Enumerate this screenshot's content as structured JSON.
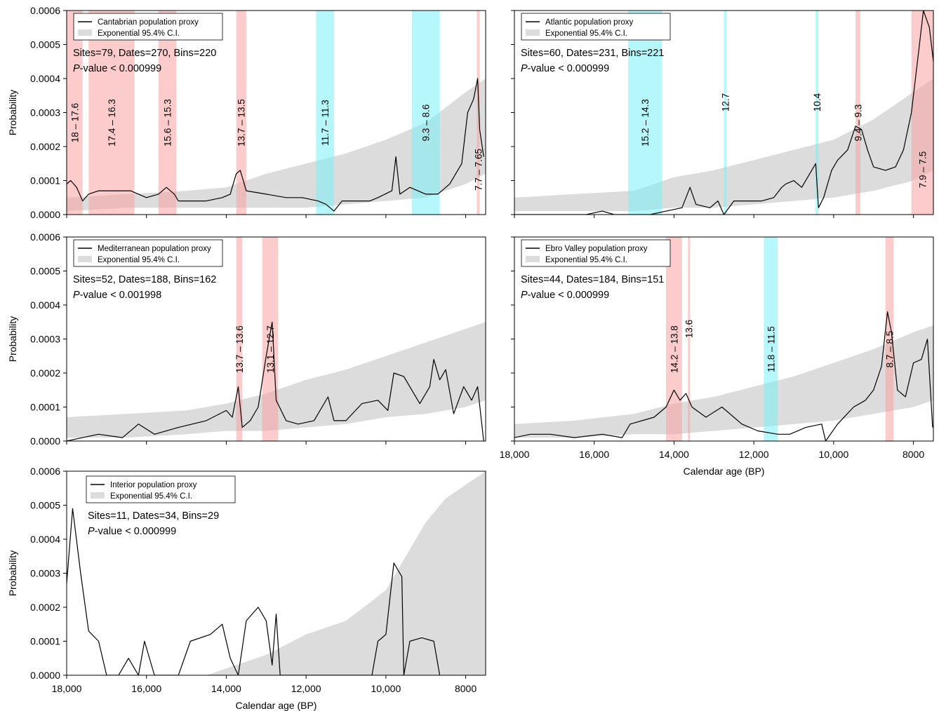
{
  "figure": {
    "ylabel": "Probability",
    "xlabel": "Calendar age (BP)",
    "ci_label": "Exponential 95.4% C.I."
  },
  "chart_data": [
    {
      "type": "line",
      "legend": "Cantabrian population proxy",
      "stats": "Sites=79, Dates=270, Bins=220",
      "pvalue": "< 0.000999",
      "xlim": [
        18000,
        7500
      ],
      "ylim": [
        0,
        0.0006
      ],
      "yticks": [
        "0.0000",
        "0.0001",
        "0.0002",
        "0.0003",
        "0.0004",
        "0.0005",
        "0.0006"
      ],
      "xticks": [],
      "bands": [
        {
          "from": 18000,
          "to": 17600,
          "label": "18 – 17.6",
          "color": "red"
        },
        {
          "from": 17450,
          "to": 16300,
          "label": "17.4 – 16.3",
          "color": "red"
        },
        {
          "from": 15700,
          "to": 15250,
          "label": "15.6 – 15.3",
          "color": "red"
        },
        {
          "from": 13750,
          "to": 13500,
          "label": "13.7 – 13.5",
          "color": "red"
        },
        {
          "from": 11750,
          "to": 11300,
          "label": "11.7 – 11.3",
          "color": "cyan"
        },
        {
          "from": 9350,
          "to": 8650,
          "label": "9.3 – 8.6",
          "color": "cyan"
        },
        {
          "from": 7720,
          "to": 7650,
          "label": "7.7 – 7.65",
          "color": "red"
        }
      ],
      "ci": [
        [
          18000,
          1e-05,
          5e-05
        ],
        [
          16500,
          2e-05,
          6e-05
        ],
        [
          15000,
          2e-05,
          7e-05
        ],
        [
          14000,
          2e-05,
          8e-05
        ],
        [
          13000,
          2e-05,
          0.00012
        ],
        [
          12000,
          2e-05,
          0.00015
        ],
        [
          11000,
          3e-05,
          0.00018
        ],
        [
          10000,
          4e-05,
          0.00022
        ],
        [
          9000,
          5e-05,
          0.00027
        ],
        [
          8000,
          9e-05,
          0.00036
        ],
        [
          7500,
          0.00012,
          0.0004
        ]
      ],
      "line": [
        [
          18000,
          9e-05
        ],
        [
          17900,
          0.0001
        ],
        [
          17750,
          8e-05
        ],
        [
          17600,
          4e-05
        ],
        [
          17450,
          6e-05
        ],
        [
          17200,
          7e-05
        ],
        [
          16800,
          7e-05
        ],
        [
          16400,
          7e-05
        ],
        [
          16000,
          5e-05
        ],
        [
          15700,
          6e-05
        ],
        [
          15500,
          8e-05
        ],
        [
          15300,
          6e-05
        ],
        [
          15200,
          4e-05
        ],
        [
          14500,
          4e-05
        ],
        [
          14100,
          5e-05
        ],
        [
          13900,
          6e-05
        ],
        [
          13750,
          0.00012
        ],
        [
          13650,
          0.00013
        ],
        [
          13500,
          7e-05
        ],
        [
          13000,
          6e-05
        ],
        [
          12500,
          5e-05
        ],
        [
          12100,
          5e-05
        ],
        [
          11700,
          4e-05
        ],
        [
          11500,
          3e-05
        ],
        [
          11300,
          1e-05
        ],
        [
          11100,
          4e-05
        ],
        [
          10400,
          4e-05
        ],
        [
          10200,
          5e-05
        ],
        [
          9850,
          7e-05
        ],
        [
          9750,
          0.00017
        ],
        [
          9650,
          6e-05
        ],
        [
          9400,
          8e-05
        ],
        [
          9000,
          6e-05
        ],
        [
          8700,
          6e-05
        ],
        [
          8400,
          9e-05
        ],
        [
          8100,
          0.00015
        ],
        [
          7950,
          0.0003
        ],
        [
          7800,
          0.00034
        ],
        [
          7700,
          0.0004
        ],
        [
          7650,
          0.00025
        ],
        [
          7550,
          0.00017
        ]
      ]
    },
    {
      "type": "line",
      "legend": "Atlantic population proxy",
      "stats": "Sites=60, Dates=231, Bins=221",
      "pvalue": "< 0.000999",
      "xlim": [
        18000,
        7500
      ],
      "ylim": [
        0,
        0.0006
      ],
      "yticks": [],
      "xticks": [],
      "bands": [
        {
          "from": 15150,
          "to": 14300,
          "label": "15.2 – 14.3",
          "color": "cyan"
        },
        {
          "from": 12750,
          "to": 12680,
          "label": "12.7",
          "color": "cyan"
        },
        {
          "from": 10450,
          "to": 10380,
          "label": "10.4",
          "color": "cyan"
        },
        {
          "from": 9450,
          "to": 9330,
          "label": "9.4 – 9.3",
          "color": "red"
        },
        {
          "from": 8050,
          "to": 7500,
          "label": "7.9 – 7.5",
          "color": "red"
        }
      ],
      "ci": [
        [
          18000,
          1e-05,
          5e-05
        ],
        [
          16500,
          1e-05,
          6e-05
        ],
        [
          15000,
          1e-05,
          7e-05
        ],
        [
          14000,
          2e-05,
          0.00011
        ],
        [
          13000,
          2e-05,
          0.00013
        ],
        [
          12000,
          3e-05,
          0.00016
        ],
        [
          11000,
          4e-05,
          0.00019
        ],
        [
          10000,
          5e-05,
          0.00022
        ],
        [
          9000,
          7e-05,
          0.00028
        ],
        [
          8000,
          0.0001,
          0.00036
        ],
        [
          7500,
          0.00013,
          0.0004
        ]
      ],
      "line": [
        [
          18000,
          0.0
        ],
        [
          16200,
          0.0
        ],
        [
          15800,
          1e-05
        ],
        [
          15500,
          0.0
        ],
        [
          14600,
          0.0
        ],
        [
          14200,
          1e-05
        ],
        [
          13800,
          2e-05
        ],
        [
          13600,
          8e-05
        ],
        [
          13450,
          3e-05
        ],
        [
          13100,
          2e-05
        ],
        [
          12900,
          4e-05
        ],
        [
          12750,
          0.0
        ],
        [
          12500,
          4e-05
        ],
        [
          11800,
          4e-05
        ],
        [
          11500,
          5e-05
        ],
        [
          11300,
          8e-05
        ],
        [
          11200,
          9e-05
        ],
        [
          11000,
          0.0001
        ],
        [
          10800,
          8e-05
        ],
        [
          10650,
          0.00011
        ],
        [
          10450,
          0.00015
        ],
        [
          10380,
          2e-05
        ],
        [
          10250,
          5e-05
        ],
        [
          10050,
          0.00013
        ],
        [
          9900,
          0.00016
        ],
        [
          9650,
          0.00019
        ],
        [
          9450,
          0.00026
        ],
        [
          9300,
          0.00025
        ],
        [
          9150,
          0.00019
        ],
        [
          9000,
          0.00014
        ],
        [
          8700,
          0.00013
        ],
        [
          8450,
          0.00014
        ],
        [
          8250,
          0.00019
        ],
        [
          8050,
          0.0003
        ],
        [
          7900,
          0.00045
        ],
        [
          7750,
          0.0006
        ],
        [
          7600,
          0.00055
        ],
        [
          7500,
          0.00045
        ]
      ]
    },
    {
      "type": "line",
      "legend": "Mediterranean population proxy",
      "stats": "Sites=52, Dates=188, Bins=162",
      "pvalue": "< 0.001998",
      "xlim": [
        18000,
        7500
      ],
      "ylim": [
        0,
        0.0006
      ],
      "yticks": [
        "0.0000",
        "0.0001",
        "0.0002",
        "0.0003",
        "0.0004",
        "0.0005",
        "0.0006"
      ],
      "xticks": [],
      "bands": [
        {
          "from": 13750,
          "to": 13600,
          "label": "13.7 – 13.6",
          "color": "red"
        },
        {
          "from": 13100,
          "to": 12700,
          "label": "13.1 – 12.7",
          "color": "red"
        }
      ],
      "ci": [
        [
          18000,
          1e-05,
          7e-05
        ],
        [
          16500,
          1e-05,
          8e-05
        ],
        [
          15000,
          2e-05,
          9e-05
        ],
        [
          14000,
          3e-05,
          0.00011
        ],
        [
          13000,
          3e-05,
          0.00014
        ],
        [
          12000,
          4e-05,
          0.00018
        ],
        [
          11000,
          5e-05,
          0.00021
        ],
        [
          10000,
          7e-05,
          0.00025
        ],
        [
          9000,
          8e-05,
          0.00029
        ],
        [
          8000,
          0.0001,
          0.00033
        ],
        [
          7500,
          0.00012,
          0.00035
        ]
      ],
      "line": [
        [
          18000,
          0.0
        ],
        [
          17600,
          1e-05
        ],
        [
          17200,
          2e-05
        ],
        [
          16600,
          1e-05
        ],
        [
          16200,
          5e-05
        ],
        [
          15800,
          2e-05
        ],
        [
          15200,
          4e-05
        ],
        [
          14500,
          6e-05
        ],
        [
          14000,
          9e-05
        ],
        [
          13850,
          7e-05
        ],
        [
          13700,
          0.00016
        ],
        [
          13600,
          4e-05
        ],
        [
          13400,
          6e-05
        ],
        [
          13200,
          0.0001
        ],
        [
          13000,
          0.00025
        ],
        [
          12850,
          0.00035
        ],
        [
          12750,
          0.00012
        ],
        [
          12500,
          6e-05
        ],
        [
          12200,
          5e-05
        ],
        [
          11800,
          6e-05
        ],
        [
          11450,
          0.00013
        ],
        [
          11300,
          6e-05
        ],
        [
          11000,
          6e-05
        ],
        [
          10600,
          0.00011
        ],
        [
          10200,
          0.00012
        ],
        [
          9950,
          9e-05
        ],
        [
          9800,
          0.0002
        ],
        [
          9550,
          0.00019
        ],
        [
          9350,
          0.00015
        ],
        [
          9150,
          0.00011
        ],
        [
          8900,
          0.00016
        ],
        [
          8800,
          0.00024
        ],
        [
          8650,
          0.00018
        ],
        [
          8500,
          0.00021
        ],
        [
          8300,
          8e-05
        ],
        [
          8050,
          0.00016
        ],
        [
          7850,
          0.00012
        ],
        [
          7700,
          0.00016
        ],
        [
          7550,
          0.0
        ]
      ]
    },
    {
      "type": "line",
      "legend": "Ebro Valley population proxy",
      "stats": "Sites=44, Dates=184, Bins=151",
      "pvalue": "< 0.000999",
      "xlim": [
        18000,
        7500
      ],
      "ylim": [
        0,
        0.0006
      ],
      "yticks": [],
      "xticks": [
        "18,000",
        "16,000",
        "14,000",
        "12,000",
        "10,000",
        "8000"
      ],
      "xtick_values": [
        18000,
        16000,
        14000,
        12000,
        10000,
        8000
      ],
      "bands": [
        {
          "from": 14200,
          "to": 13800,
          "label": "14.2 – 13.8",
          "color": "red"
        },
        {
          "from": 13650,
          "to": 13600,
          "label": "13.6",
          "color": "red"
        },
        {
          "from": 11750,
          "to": 11400,
          "label": "11.8 – 11.5",
          "color": "cyan"
        },
        {
          "from": 8700,
          "to": 8500,
          "label": "8.7 – 8.5",
          "color": "red"
        }
      ],
      "ci": [
        [
          18000,
          1e-05,
          5e-05
        ],
        [
          16500,
          1e-05,
          6e-05
        ],
        [
          15000,
          2e-05,
          8e-05
        ],
        [
          14000,
          2e-05,
          0.00011
        ],
        [
          13000,
          3e-05,
          0.00013
        ],
        [
          12000,
          4e-05,
          0.00016
        ],
        [
          11000,
          5e-05,
          0.00019
        ],
        [
          10000,
          6e-05,
          0.00023
        ],
        [
          9000,
          8e-05,
          0.00027
        ],
        [
          8000,
          0.0001,
          0.00032
        ],
        [
          7500,
          0.00012,
          0.00034
        ]
      ],
      "line": [
        [
          18000,
          1e-05
        ],
        [
          17600,
          2e-05
        ],
        [
          17100,
          2e-05
        ],
        [
          16500,
          1e-05
        ],
        [
          15800,
          2e-05
        ],
        [
          15300,
          1e-05
        ],
        [
          15100,
          5e-05
        ],
        [
          14500,
          7e-05
        ],
        [
          14200,
          0.0001
        ],
        [
          14000,
          0.00015
        ],
        [
          13850,
          0.00012
        ],
        [
          13700,
          0.00014
        ],
        [
          13550,
          0.0001
        ],
        [
          13200,
          7e-05
        ],
        [
          12800,
          0.0001
        ],
        [
          12300,
          5e-05
        ],
        [
          11900,
          3e-05
        ],
        [
          11400,
          2e-05
        ],
        [
          11100,
          2e-05
        ],
        [
          10700,
          4e-05
        ],
        [
          10300,
          5e-05
        ],
        [
          10200,
          0.0
        ],
        [
          9900,
          5e-05
        ],
        [
          9500,
          0.0001
        ],
        [
          9200,
          0.00012
        ],
        [
          9000,
          0.00015
        ],
        [
          8800,
          0.00022
        ],
        [
          8650,
          0.00038
        ],
        [
          8550,
          0.00032
        ],
        [
          8400,
          0.00015
        ],
        [
          8200,
          0.00013
        ],
        [
          8000,
          0.00023
        ],
        [
          7800,
          0.00024
        ],
        [
          7650,
          0.0003
        ],
        [
          7520,
          4e-05
        ]
      ]
    },
    {
      "type": "line",
      "legend": "Interior population proxy",
      "stats": "Sites=11, Dates=34, Bins=29",
      "pvalue": "< 0.000999",
      "xlim": [
        18000,
        7500
      ],
      "ylim": [
        0,
        0.0006
      ],
      "yticks": [
        "0.0000",
        "0.0001",
        "0.0002",
        "0.0003",
        "0.0004",
        "0.0005",
        "0.0006"
      ],
      "xticks": [
        "18,000",
        "16,000",
        "14,000",
        "12,000",
        "10,000",
        "8000"
      ],
      "xtick_values": [
        18000,
        16000,
        14000,
        12000,
        10000,
        8000
      ],
      "bands": [],
      "ci": [
        [
          14500,
          0.0,
          0.0
        ],
        [
          14000,
          0.0,
          2e-05
        ],
        [
          13500,
          0.0,
          4e-05
        ],
        [
          13000,
          0.0,
          6e-05
        ],
        [
          12500,
          0.0,
          9e-05
        ],
        [
          12000,
          0.0,
          0.00012
        ],
        [
          11000,
          0.0,
          0.00016
        ],
        [
          10000,
          0.0,
          0.00025
        ],
        [
          9500,
          0.0,
          0.00035
        ],
        [
          9000,
          0.0,
          0.00045
        ],
        [
          8500,
          0.0,
          0.00052
        ],
        [
          7500,
          0.0,
          0.0006
        ]
      ],
      "line": [
        [
          18000,
          0.00027
        ],
        [
          17850,
          0.00049
        ],
        [
          17650,
          0.0003
        ],
        [
          17450,
          0.00013
        ],
        [
          17200,
          0.0001
        ],
        [
          17000,
          0.0
        ],
        [
          16700,
          0.0
        ],
        [
          16450,
          5e-05
        ],
        [
          16200,
          0.0
        ],
        [
          16050,
          0.0001
        ],
        [
          15800,
          0.0
        ],
        [
          15200,
          0.0
        ],
        [
          14900,
          0.0001
        ],
        [
          14400,
          0.00012
        ],
        [
          14100,
          0.00015
        ],
        [
          13900,
          5e-05
        ],
        [
          13700,
          0.0
        ],
        [
          13500,
          0.00016
        ],
        [
          13200,
          0.0002
        ],
        [
          13000,
          0.00016
        ],
        [
          12850,
          3e-05
        ],
        [
          12750,
          0.00018
        ],
        [
          12650,
          0.0
        ],
        [
          10350,
          0.0
        ],
        [
          10200,
          0.0001
        ],
        [
          10000,
          0.00012
        ],
        [
          9800,
          0.00033
        ],
        [
          9600,
          0.00029
        ],
        [
          9550,
          0.0
        ],
        [
          9400,
          0.0001
        ],
        [
          9100,
          0.00011
        ],
        [
          8800,
          0.0001
        ],
        [
          8650,
          0.0
        ]
      ]
    }
  ]
}
